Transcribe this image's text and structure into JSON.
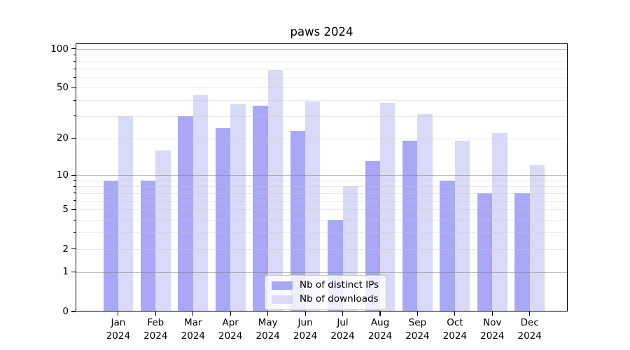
{
  "title": "paws 2024",
  "chart_data": {
    "type": "bar",
    "title": "paws 2024",
    "categories": [
      "Jan 2024",
      "Feb 2024",
      "Mar 2024",
      "Apr 2024",
      "May 2024",
      "Jun 2024",
      "Jul 2024",
      "Aug 2024",
      "Sep 2024",
      "Oct 2024",
      "Nov 2024",
      "Dec 2024"
    ],
    "series": [
      {
        "name": "Nb of distinct IPs",
        "color": "#a8a8f6",
        "values": [
          9,
          9,
          30,
          24,
          36,
          23,
          4,
          13,
          19,
          9,
          7,
          7
        ]
      },
      {
        "name": "Nb of downloads",
        "color": "#d9d9f8",
        "values": [
          30,
          16,
          44,
          37,
          69,
          39,
          8,
          38,
          31,
          19,
          22,
          12
        ]
      }
    ],
    "xlabel": "",
    "ylabel": "",
    "yscale": "log1p",
    "ylim": [
      0,
      109
    ],
    "y_ticks": [
      {
        "v": 0,
        "label": "0"
      },
      {
        "v": 1,
        "label": "1"
      },
      {
        "v": 2,
        "label": "2"
      },
      {
        "v": 5,
        "label": "5"
      },
      {
        "v": 10,
        "label": "10"
      },
      {
        "v": 20,
        "label": "20"
      },
      {
        "v": 50,
        "label": "50"
      },
      {
        "v": 100,
        "label": "100"
      }
    ],
    "grid": {
      "major": [
        1,
        10,
        100
      ],
      "minor": [
        2,
        3,
        4,
        5,
        6,
        7,
        8,
        9,
        20,
        30,
        40,
        50,
        60,
        70,
        80,
        90
      ]
    },
    "y_minor_axis_ticks": [
      3,
      4,
      6,
      7,
      8,
      9,
      30,
      40,
      60,
      70,
      80,
      90
    ],
    "legend_position": "lower center",
    "grid_on": true
  },
  "legend": {
    "items": [
      "Nb of distinct IPs",
      "Nb of downloads"
    ]
  },
  "colors": {
    "bar_dark": "#a8a8f6",
    "bar_light": "#d9d9f8",
    "background": "#ffffff",
    "axis": "#000000",
    "legend_border": "#cccccc"
  }
}
